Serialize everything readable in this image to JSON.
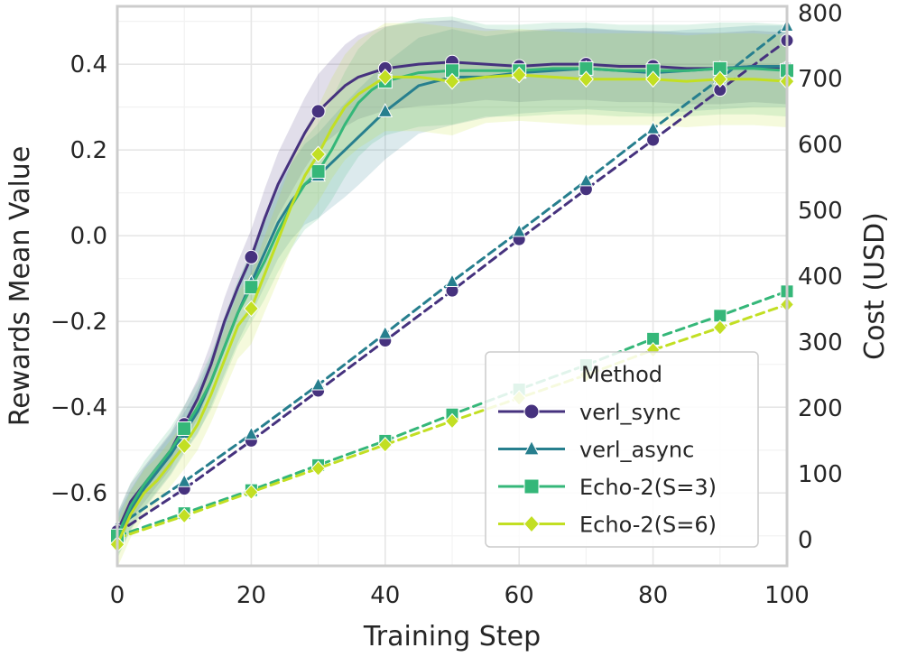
{
  "chart_data": {
    "type": "line",
    "title": "",
    "xlabel": "Training Step",
    "ylabel": "Rewards Mean Value",
    "y2label": "Cost (USD)",
    "xlim": [
      0,
      100
    ],
    "ylim": [
      -0.77,
      0.535
    ],
    "y2lim": [
      -40,
      810
    ],
    "x_ticks": [
      0,
      20,
      40,
      60,
      80,
      100
    ],
    "x_tick_labels": [
      "0",
      "20",
      "40",
      "60",
      "80",
      "100"
    ],
    "y_ticks": [
      -0.6,
      -0.4,
      -0.2,
      0.0,
      0.2,
      0.4
    ],
    "y_tick_labels": [
      "−0.6",
      "−0.4",
      "−0.2",
      "0.0",
      "0.2",
      "0.4"
    ],
    "y2_ticks": [
      0,
      100,
      200,
      300,
      400,
      500,
      600,
      700,
      800
    ],
    "y2_tick_labels": [
      "0",
      "100",
      "200",
      "300",
      "400",
      "500",
      "600",
      "700",
      "800"
    ],
    "grid": true,
    "legend": {
      "title": "Method",
      "placement": "lower-right",
      "entries": [
        "verl_sync",
        "verl_async",
        "Echo-2(S=3)",
        "Echo-2(S=6)"
      ]
    },
    "series": [
      {
        "name": "verl_sync",
        "color": "#46327e",
        "marker": "circle",
        "reward_x": [
          0,
          2,
          4,
          6,
          8,
          10,
          12,
          14,
          16,
          18,
          20,
          22,
          24,
          26,
          28,
          30,
          32,
          34,
          36,
          38,
          40,
          45,
          50,
          55,
          60,
          65,
          70,
          75,
          80,
          85,
          90,
          95,
          100
        ],
        "reward": [
          -0.69,
          -0.62,
          -0.58,
          -0.54,
          -0.5,
          -0.44,
          -0.38,
          -0.3,
          -0.2,
          -0.12,
          -0.05,
          0.04,
          0.12,
          0.18,
          0.24,
          0.29,
          0.32,
          0.35,
          0.37,
          0.38,
          0.39,
          0.4,
          0.405,
          0.4,
          0.395,
          0.4,
          0.4,
          0.395,
          0.395,
          0.39,
          0.39,
          0.395,
          0.39
        ],
        "reward_band": 0.07,
        "reward_marker_x": [
          0,
          10,
          20,
          30,
          40,
          50,
          60,
          70,
          80,
          90,
          100
        ],
        "cost_x": [
          0,
          10,
          20,
          30,
          40,
          50,
          60,
          70,
          80,
          90,
          100
        ],
        "cost": [
          10,
          77,
          150,
          226,
          302,
          378,
          456,
          532,
          607,
          683,
          758
        ]
      },
      {
        "name": "verl_async",
        "color": "#277f8e",
        "marker": "triangle",
        "reward_x": [
          0,
          2,
          4,
          6,
          8,
          10,
          12,
          14,
          16,
          18,
          20,
          22,
          24,
          26,
          28,
          30,
          32,
          34,
          36,
          38,
          40,
          45,
          50,
          55,
          60,
          65,
          70,
          75,
          80,
          85,
          90,
          95,
          100
        ],
        "reward": [
          -0.7,
          -0.64,
          -0.59,
          -0.55,
          -0.51,
          -0.46,
          -0.41,
          -0.34,
          -0.26,
          -0.18,
          -0.11,
          -0.04,
          0.03,
          0.08,
          0.12,
          0.14,
          0.17,
          0.2,
          0.23,
          0.26,
          0.29,
          0.35,
          0.37,
          0.37,
          0.38,
          0.385,
          0.39,
          0.385,
          0.38,
          0.385,
          0.39,
          0.395,
          0.395
        ],
        "reward_band": 0.08,
        "reward_marker_x": [
          0,
          10,
          20,
          30,
          40,
          50,
          60,
          70,
          80,
          90,
          100
        ],
        "cost_x": [
          0,
          10,
          20,
          30,
          40,
          50,
          60,
          70,
          80,
          90,
          100
        ],
        "cost": [
          20,
          88,
          160,
          235,
          313,
          392,
          468,
          545,
          624,
          700,
          780
        ]
      },
      {
        "name": "Echo-2(S=3)",
        "color": "#35b779",
        "marker": "square",
        "reward_x": [
          0,
          2,
          4,
          6,
          8,
          10,
          12,
          14,
          16,
          18,
          20,
          22,
          24,
          26,
          28,
          30,
          32,
          34,
          36,
          38,
          40,
          45,
          50,
          55,
          60,
          65,
          70,
          75,
          80,
          85,
          90,
          95,
          100
        ],
        "reward": [
          -0.7,
          -0.63,
          -0.58,
          -0.54,
          -0.5,
          -0.45,
          -0.4,
          -0.34,
          -0.26,
          -0.18,
          -0.12,
          -0.06,
          0.01,
          0.07,
          0.12,
          0.15,
          0.2,
          0.26,
          0.31,
          0.34,
          0.36,
          0.38,
          0.385,
          0.385,
          0.385,
          0.39,
          0.39,
          0.385,
          0.385,
          0.385,
          0.39,
          0.39,
          0.385
        ],
        "reward_band": 0.09,
        "reward_marker_x": [
          0,
          10,
          20,
          30,
          40,
          50,
          60,
          70,
          80,
          90,
          100
        ],
        "cost_x": [
          0,
          10,
          20,
          30,
          40,
          50,
          60,
          70,
          80,
          90,
          100
        ],
        "cost": [
          5,
          40,
          75,
          113,
          150,
          190,
          228,
          265,
          305,
          340,
          377
        ]
      },
      {
        "name": "Echo-2(S=6)",
        "color": "#c2df23",
        "marker": "diamond",
        "reward_x": [
          0,
          2,
          4,
          6,
          8,
          10,
          12,
          14,
          16,
          18,
          20,
          22,
          24,
          26,
          28,
          30,
          32,
          34,
          36,
          38,
          40,
          45,
          50,
          55,
          60,
          65,
          70,
          75,
          80,
          85,
          90,
          95,
          100
        ],
        "reward": [
          -0.72,
          -0.65,
          -0.6,
          -0.57,
          -0.53,
          -0.49,
          -0.44,
          -0.37,
          -0.29,
          -0.21,
          -0.17,
          -0.09,
          -0.01,
          0.07,
          0.14,
          0.19,
          0.25,
          0.3,
          0.33,
          0.35,
          0.37,
          0.37,
          0.36,
          0.37,
          0.375,
          0.37,
          0.365,
          0.365,
          0.365,
          0.36,
          0.365,
          0.365,
          0.36
        ],
        "reward_band": 0.09,
        "reward_marker_x": [
          0,
          10,
          20,
          30,
          40,
          50,
          60,
          70,
          80,
          90,
          100
        ],
        "cost_x": [
          0,
          10,
          20,
          30,
          40,
          50,
          60,
          70,
          80,
          90,
          100
        ],
        "cost": [
          2,
          36,
          72,
          108,
          144,
          180,
          215,
          250,
          288,
          322,
          357
        ]
      }
    ]
  }
}
